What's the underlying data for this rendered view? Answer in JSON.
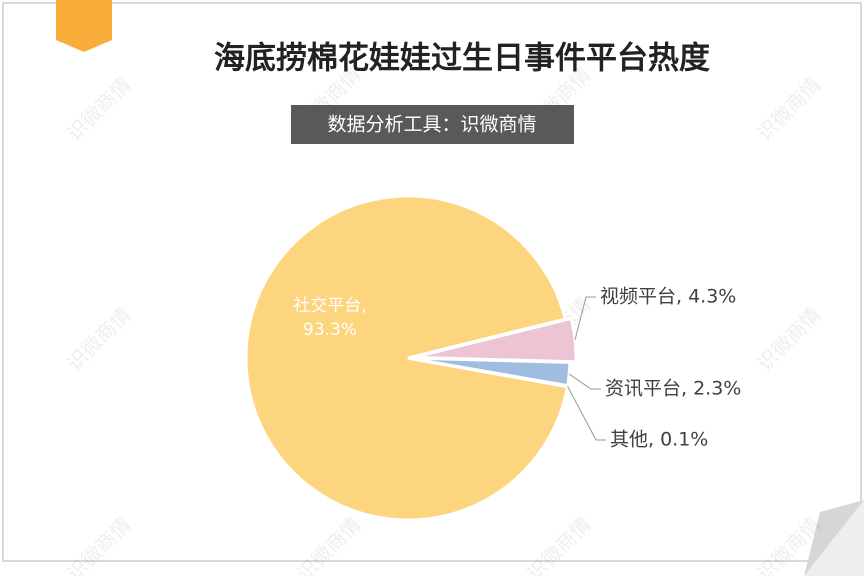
{
  "chart_data": {
    "type": "pie",
    "title": "海底捞棉花娃娃过生日事件平台热度",
    "subtitle": "数据分析工具：识微商情",
    "watermark": "识微商情",
    "categories": [
      "社交平台",
      "视频平台",
      "资讯平台",
      "其他"
    ],
    "values": [
      93.3,
      4.3,
      2.3,
      0.1
    ],
    "value_labels": [
      "社交平台, 93.3%",
      "视频平台, 4.3%",
      "资讯平台, 2.3%",
      "其他, 0.1%"
    ],
    "colors": [
      "#fdd57e",
      "#ecc4d3",
      "#9fbde0",
      "#e8a3a3"
    ]
  }
}
